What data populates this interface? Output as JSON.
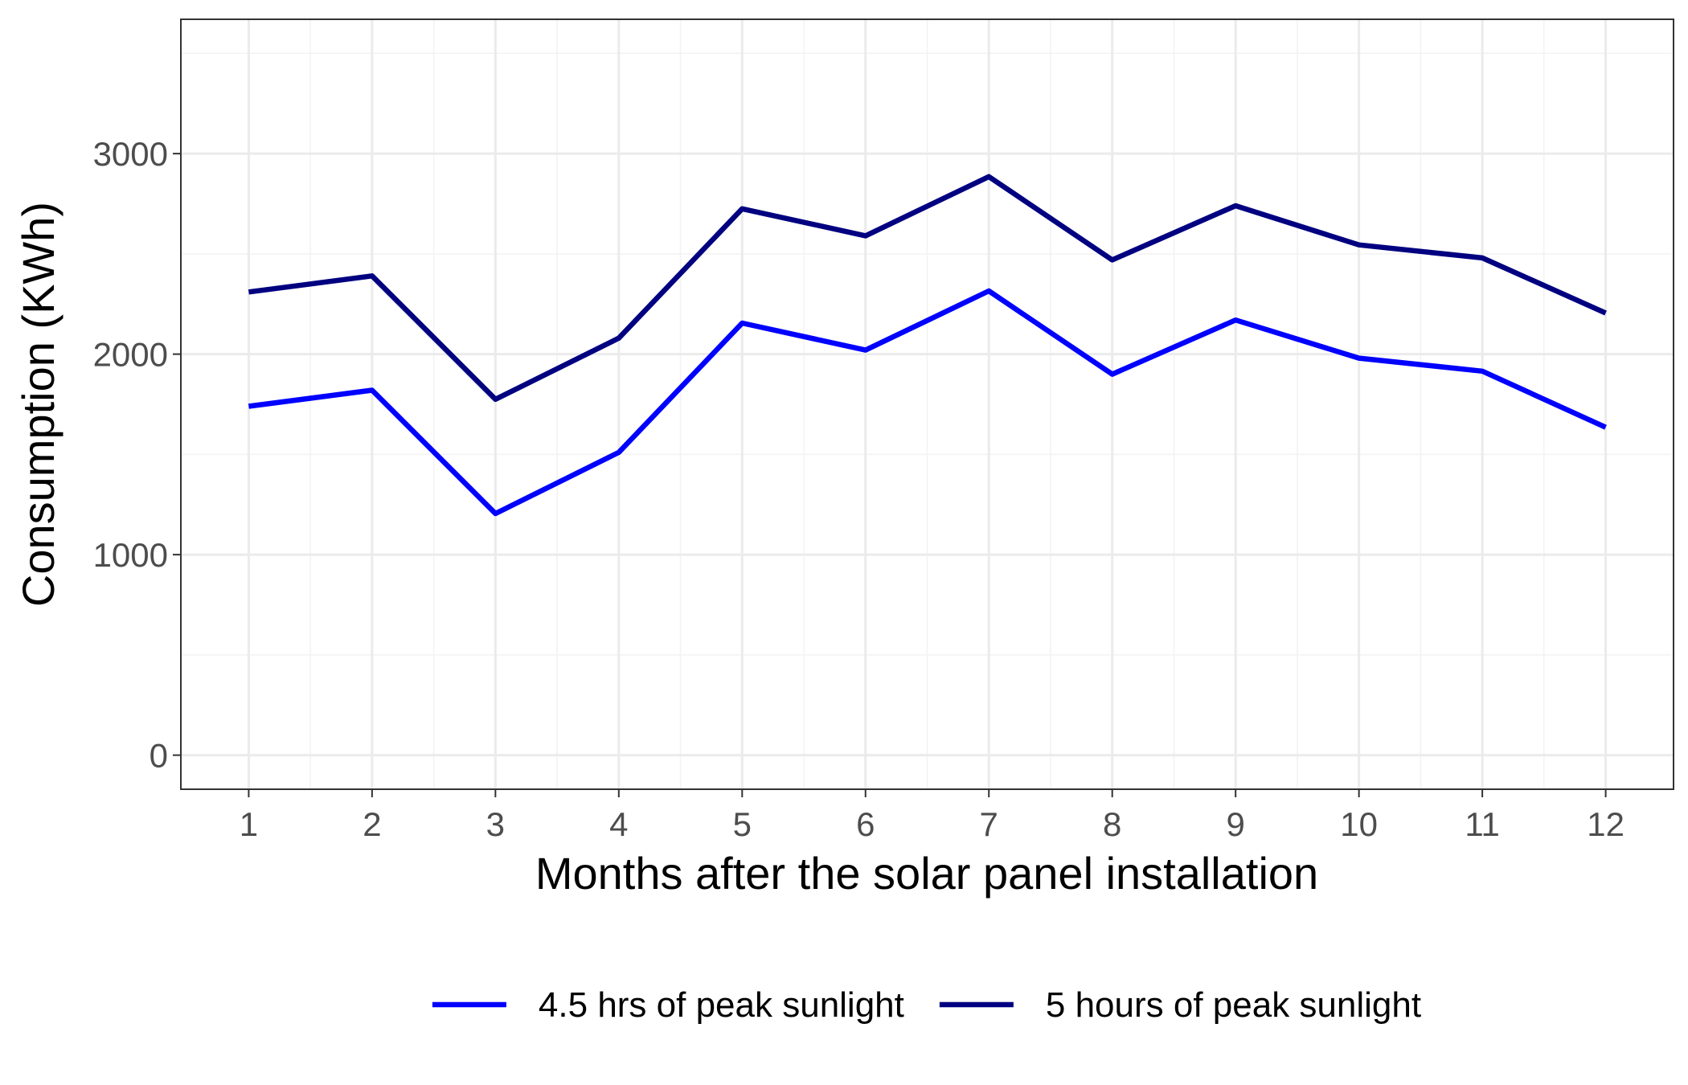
{
  "chart_data": {
    "type": "line",
    "title": "",
    "xlabel": "Months after the solar panel installation",
    "ylabel": "Consumption (KWh)",
    "x": [
      1,
      2,
      3,
      4,
      5,
      6,
      7,
      8,
      9,
      10,
      11,
      12
    ],
    "xlim": [
      0.45,
      12.55
    ],
    "ylim": [
      -170,
      3670
    ],
    "y_ticks": [
      0,
      1000,
      2000,
      3000
    ],
    "y_minor_ticks": [
      500,
      1500,
      2500,
      3500
    ],
    "x_minor_ticks": [
      1.5,
      2.5,
      3.5,
      4.5,
      5.5,
      6.5,
      7.5,
      8.5,
      9.5,
      10.5,
      11.5
    ],
    "grid": true,
    "legend_position": "bottom",
    "series": [
      {
        "name": "4.5 hrs of peak sunlight",
        "color": "#0000ff",
        "values": [
          1740,
          1820,
          1205,
          1510,
          2155,
          2020,
          2315,
          1900,
          2170,
          1980,
          1915,
          1635
        ]
      },
      {
        "name": "5 hours of peak sunlight",
        "color": "#000080",
        "values": [
          2310,
          2390,
          1775,
          2080,
          2725,
          2590,
          2885,
          2470,
          2740,
          2545,
          2480,
          2205
        ]
      }
    ]
  }
}
